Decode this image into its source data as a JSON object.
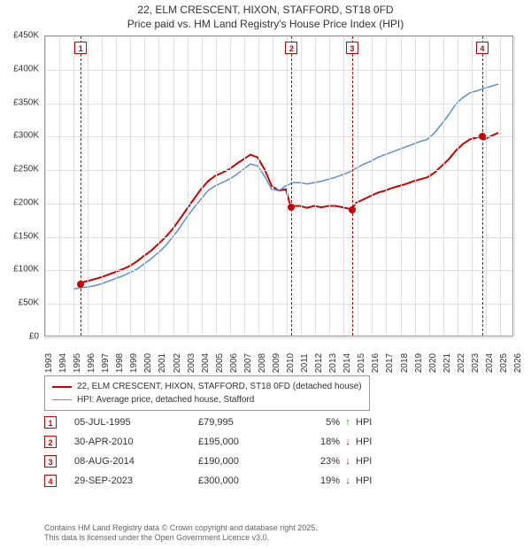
{
  "title": {
    "line1": "22, ELM CRESCENT, HIXON, STAFFORD, ST18 0FD",
    "line2": "Price paid vs. HM Land Registry's House Price Index (HPI)"
  },
  "chart": {
    "type": "line",
    "background_color": "#ffffff",
    "grid_color": "#e0e0e0",
    "border_color": "#999999",
    "ylim": [
      0,
      450000
    ],
    "ytick_step": 50000,
    "y_tick_labels": [
      "£0",
      "£50K",
      "£100K",
      "£150K",
      "£200K",
      "£250K",
      "£300K",
      "£350K",
      "£400K",
      "£450K"
    ],
    "xlim": [
      1993,
      2026
    ],
    "x_ticks": [
      1993,
      1994,
      1995,
      1996,
      1997,
      1998,
      1999,
      2000,
      2001,
      2002,
      2003,
      2004,
      2005,
      2006,
      2007,
      2008,
      2009,
      2010,
      2011,
      2012,
      2013,
      2014,
      2015,
      2016,
      2017,
      2018,
      2019,
      2020,
      2021,
      2022,
      2023,
      2024,
      2025,
      2026
    ],
    "series": [
      {
        "name": "price_paid",
        "label": "22, ELM CRESCENT, HIXON, STAFFORD, ST18 0FD (detached house)",
        "color": "#cc0000",
        "line_width": 2,
        "points": [
          [
            1995.5,
            79995
          ],
          [
            1996,
            82000
          ],
          [
            1996.5,
            85000
          ],
          [
            1997,
            88000
          ],
          [
            1997.5,
            92000
          ],
          [
            1998,
            96000
          ],
          [
            1998.5,
            100000
          ],
          [
            1999,
            105000
          ],
          [
            1999.5,
            112000
          ],
          [
            2000,
            120000
          ],
          [
            2000.5,
            128000
          ],
          [
            2001,
            138000
          ],
          [
            2001.5,
            148000
          ],
          [
            2002,
            160000
          ],
          [
            2002.5,
            175000
          ],
          [
            2003,
            190000
          ],
          [
            2003.5,
            205000
          ],
          [
            2004,
            220000
          ],
          [
            2004.5,
            232000
          ],
          [
            2005,
            240000
          ],
          [
            2005.5,
            245000
          ],
          [
            2006,
            250000
          ],
          [
            2006.5,
            258000
          ],
          [
            2007,
            265000
          ],
          [
            2007.5,
            272000
          ],
          [
            2008,
            268000
          ],
          [
            2008.5,
            250000
          ],
          [
            2009,
            225000
          ],
          [
            2009.5,
            218000
          ],
          [
            2010,
            220000
          ],
          [
            2010.33,
            195000
          ],
          [
            2011,
            195000
          ],
          [
            2011.5,
            192000
          ],
          [
            2012,
            195000
          ],
          [
            2012.5,
            193000
          ],
          [
            2013,
            195000
          ],
          [
            2013.5,
            195000
          ],
          [
            2014,
            193000
          ],
          [
            2014.6,
            190000
          ],
          [
            2015,
            200000
          ],
          [
            2015.5,
            205000
          ],
          [
            2016,
            210000
          ],
          [
            2016.5,
            215000
          ],
          [
            2017,
            218000
          ],
          [
            2017.5,
            222000
          ],
          [
            2018,
            225000
          ],
          [
            2018.5,
            228000
          ],
          [
            2019,
            232000
          ],
          [
            2019.5,
            235000
          ],
          [
            2020,
            238000
          ],
          [
            2020.5,
            245000
          ],
          [
            2021,
            255000
          ],
          [
            2021.5,
            265000
          ],
          [
            2022,
            278000
          ],
          [
            2022.5,
            288000
          ],
          [
            2023,
            295000
          ],
          [
            2023.5,
            298000
          ],
          [
            2023.75,
            300000
          ],
          [
            2024,
            295000
          ],
          [
            2024.5,
            300000
          ],
          [
            2025,
            305000
          ]
        ]
      },
      {
        "name": "hpi",
        "label": "HPI: Average price, detached house, Stafford",
        "color": "#5b8fd6",
        "line_width": 1.5,
        "points": [
          [
            1995,
            70000
          ],
          [
            1995.5,
            72000
          ],
          [
            1996,
            73000
          ],
          [
            1996.5,
            75000
          ],
          [
            1997,
            78000
          ],
          [
            1997.5,
            82000
          ],
          [
            1998,
            86000
          ],
          [
            1998.5,
            90000
          ],
          [
            1999,
            95000
          ],
          [
            1999.5,
            100000
          ],
          [
            2000,
            108000
          ],
          [
            2000.5,
            116000
          ],
          [
            2001,
            125000
          ],
          [
            2001.5,
            135000
          ],
          [
            2002,
            148000
          ],
          [
            2002.5,
            162000
          ],
          [
            2003,
            178000
          ],
          [
            2003.5,
            192000
          ],
          [
            2004,
            205000
          ],
          [
            2004.5,
            218000
          ],
          [
            2005,
            225000
          ],
          [
            2005.5,
            230000
          ],
          [
            2006,
            235000
          ],
          [
            2006.5,
            242000
          ],
          [
            2007,
            250000
          ],
          [
            2007.5,
            258000
          ],
          [
            2008,
            255000
          ],
          [
            2008.5,
            240000
          ],
          [
            2009,
            220000
          ],
          [
            2009.5,
            218000
          ],
          [
            2010,
            225000
          ],
          [
            2010.5,
            230000
          ],
          [
            2011,
            230000
          ],
          [
            2011.5,
            228000
          ],
          [
            2012,
            230000
          ],
          [
            2012.5,
            232000
          ],
          [
            2013,
            235000
          ],
          [
            2013.5,
            238000
          ],
          [
            2014,
            242000
          ],
          [
            2014.5,
            246000
          ],
          [
            2015,
            252000
          ],
          [
            2015.5,
            258000
          ],
          [
            2016,
            262000
          ],
          [
            2016.5,
            268000
          ],
          [
            2017,
            272000
          ],
          [
            2017.5,
            276000
          ],
          [
            2018,
            280000
          ],
          [
            2018.5,
            284000
          ],
          [
            2019,
            288000
          ],
          [
            2019.5,
            292000
          ],
          [
            2020,
            295000
          ],
          [
            2020.5,
            305000
          ],
          [
            2021,
            318000
          ],
          [
            2021.5,
            332000
          ],
          [
            2022,
            348000
          ],
          [
            2022.5,
            358000
          ],
          [
            2023,
            365000
          ],
          [
            2023.5,
            368000
          ],
          [
            2024,
            372000
          ],
          [
            2024.5,
            375000
          ],
          [
            2025,
            378000
          ]
        ]
      }
    ],
    "sale_markers": [
      {
        "n": "1",
        "year": 1995.5,
        "price": 79995,
        "color": "#cc0000"
      },
      {
        "n": "2",
        "year": 2010.33,
        "price": 195000,
        "color": "#cc0000"
      },
      {
        "n": "3",
        "year": 2014.6,
        "price": 190000,
        "color": "#cc0000"
      },
      {
        "n": "4",
        "year": 2023.75,
        "price": 300000,
        "color": "#cc0000"
      }
    ],
    "marker_box": {
      "border_color": "#cc0000",
      "text_color": "#cc0000",
      "bg": "#ffffff",
      "size": 14,
      "fontsize": 9
    }
  },
  "legend": {
    "entries": [
      {
        "label": "22, ELM CRESCENT, HIXON, STAFFORD, ST18 0FD (detached house)",
        "color": "#cc0000",
        "width": 2
      },
      {
        "label": "HPI: Average price, detached house, Stafford",
        "color": "#5b8fd6",
        "width": 1.5
      }
    ]
  },
  "sales_table": {
    "rows": [
      {
        "n": "1",
        "date": "05-JUL-1995",
        "price": "£79,995",
        "diff": "5%",
        "arrow": "↑",
        "arrow_color": "#2a8a2a",
        "suffix": "HPI"
      },
      {
        "n": "2",
        "date": "30-APR-2010",
        "price": "£195,000",
        "diff": "18%",
        "arrow": "↓",
        "arrow_color": "#cc0000",
        "suffix": "HPI"
      },
      {
        "n": "3",
        "date": "08-AUG-2014",
        "price": "£190,000",
        "diff": "23%",
        "arrow": "↓",
        "arrow_color": "#cc0000",
        "suffix": "HPI"
      },
      {
        "n": "4",
        "date": "29-SEP-2023",
        "price": "£300,000",
        "diff": "19%",
        "arrow": "↓",
        "arrow_color": "#cc0000",
        "suffix": "HPI"
      }
    ]
  },
  "footer": {
    "line1": "Contains HM Land Registry data © Crown copyright and database right 2025.",
    "line2": "This data is licensed under the Open Government Licence v3.0."
  }
}
